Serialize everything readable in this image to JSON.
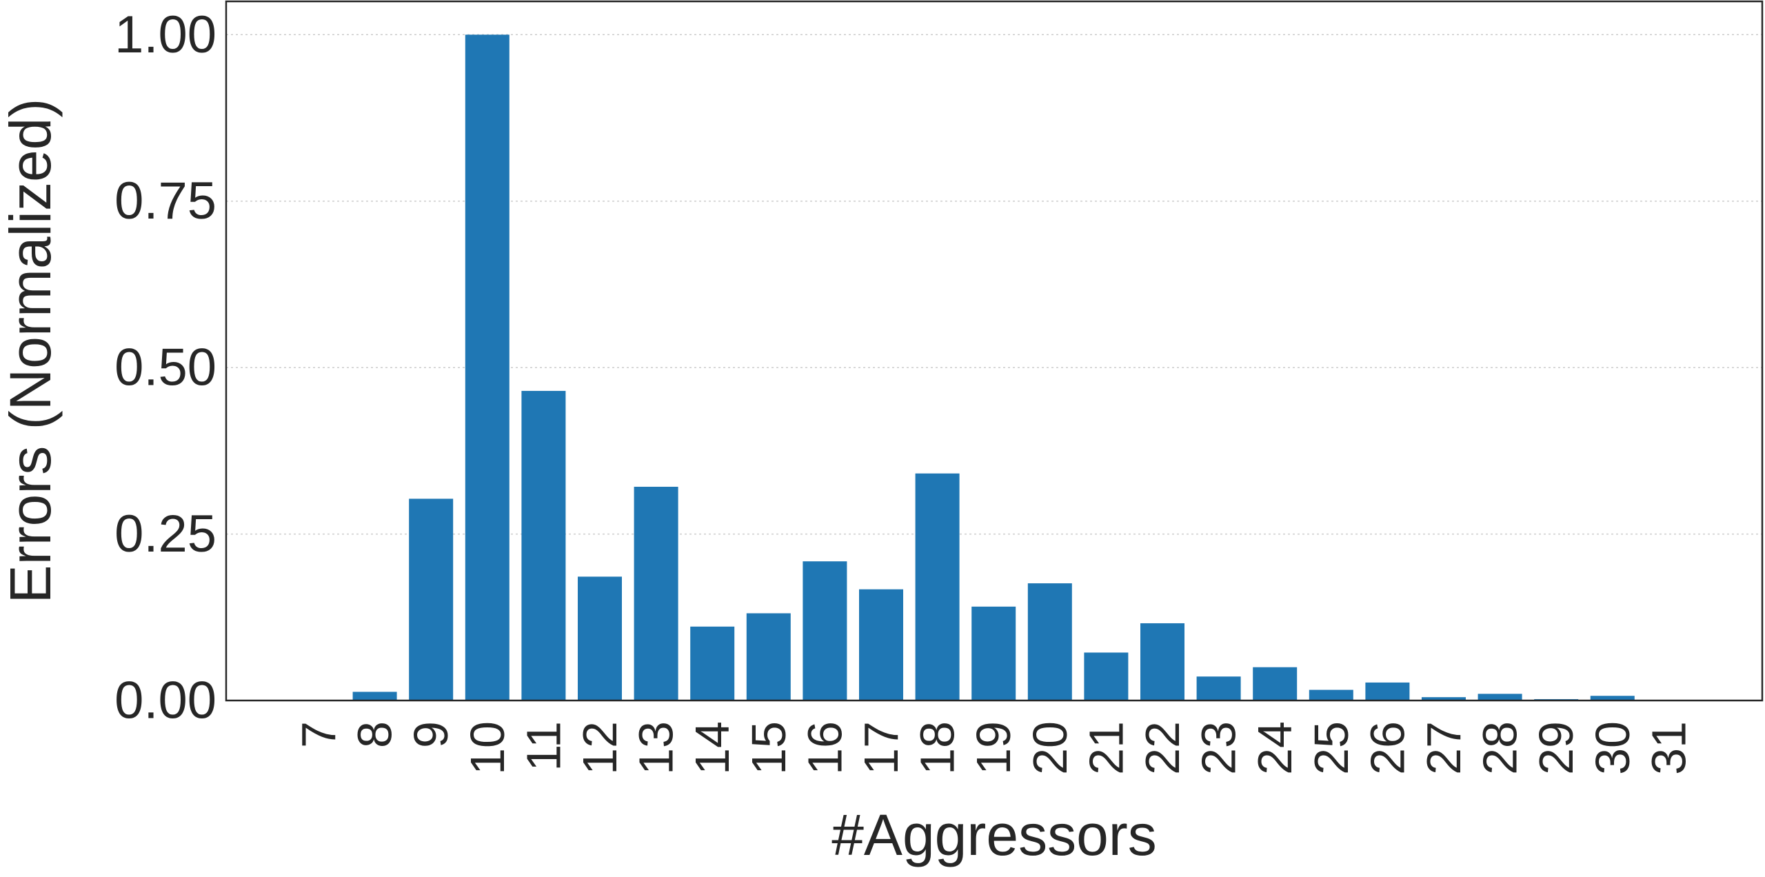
{
  "chart_data": {
    "type": "bar",
    "xlabel": "#Aggressors",
    "ylabel": "Errors (Normalized)",
    "categories": [
      "7",
      "8",
      "9",
      "10",
      "11",
      "12",
      "13",
      "14",
      "15",
      "16",
      "17",
      "18",
      "19",
      "20",
      "21",
      "22",
      "23",
      "24",
      "25",
      "26",
      "27",
      "28",
      "29",
      "30",
      "31"
    ],
    "values": [
      0,
      0.013,
      0.303,
      1.0,
      0.465,
      0.186,
      0.321,
      0.111,
      0.131,
      0.209,
      0.167,
      0.341,
      0.141,
      0.176,
      0.072,
      0.116,
      0.036,
      0.05,
      0.016,
      0.027,
      0.005,
      0.01,
      0.002,
      0.007,
      0
    ],
    "ylim": [
      -0.0,
      1.05
    ],
    "yticks": [
      0.0,
      0.25,
      0.5,
      0.75,
      1.0
    ],
    "ytick_labels": [
      "0.00",
      "0.25",
      "0.50",
      "0.75",
      "1.00"
    ],
    "grid": "y-dotted",
    "colors": {
      "bar": "#1f77b4",
      "grid": "#cccccc",
      "axis": "#262626",
      "text": "#262626"
    }
  }
}
